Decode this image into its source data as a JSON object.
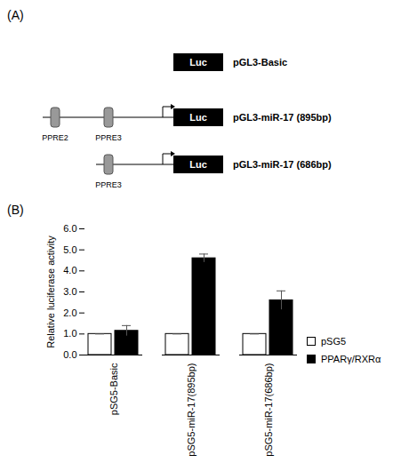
{
  "diagram": {
    "label": "(A)",
    "constructs": [
      {
        "name": "pGL3-Basic",
        "reporter": "Luc",
        "elements": []
      },
      {
        "name": "pGL3-miR-17 (895bp)",
        "reporter": "Luc",
        "elements": [
          "PPRE2",
          "PPRE3"
        ]
      },
      {
        "name": "pGL3-miR-17 (686bp)",
        "reporter": "Luc",
        "elements": [
          "PPRE3"
        ]
      }
    ]
  },
  "chart_data": {
    "type": "bar",
    "panel_label": "(B)",
    "y_label": "Relative luciferase activity",
    "categories": [
      "pSG5-Basic",
      "pSG5-miR-17(895bp)",
      "pSG5-miR-17(686bp)"
    ],
    "series": [
      {
        "name": "pSG5",
        "color": "#ffffff",
        "values": [
          1,
          1,
          1
        ],
        "errors": [
          0,
          0,
          0
        ]
      },
      {
        "name": "PPARγ/RXRα",
        "color": "#000000",
        "values": [
          1.15,
          4.6,
          2.6
        ],
        "errors": [
          0.25,
          0.2,
          0.45
        ]
      }
    ],
    "ylim": [
      0,
      6
    ],
    "yticks": [
      0,
      1,
      2,
      3,
      4,
      5,
      6
    ],
    "grid": false,
    "legend": "right"
  }
}
